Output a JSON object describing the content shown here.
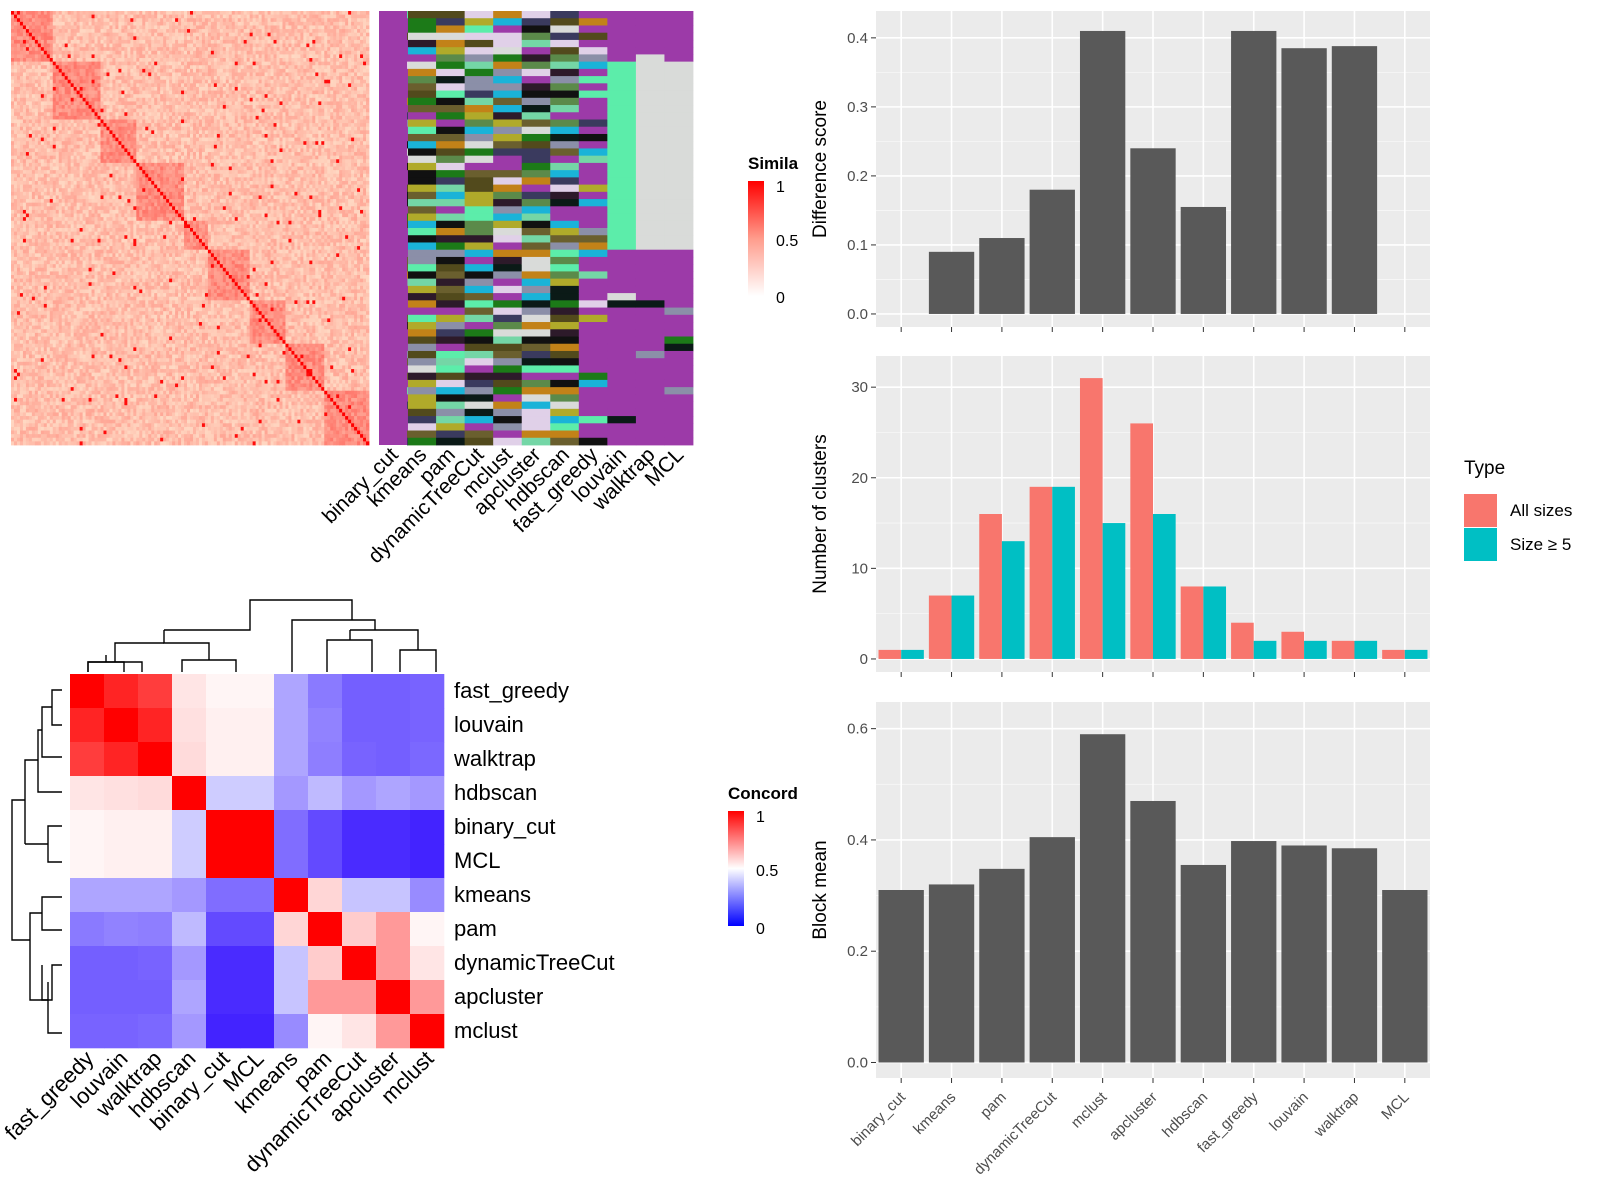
{
  "methods": [
    "binary_cut",
    "kmeans",
    "pam",
    "dynamicTreeCut",
    "mclust",
    "apcluster",
    "hdbscan",
    "fast_greedy",
    "louvain",
    "walktrap",
    "MCL"
  ],
  "similarity_legend": {
    "title": "Simila",
    "ticks": [
      "1",
      "0.5",
      "0"
    ]
  },
  "concordance_legend": {
    "title": "Concord",
    "ticks": [
      "1",
      "0.5",
      "0"
    ]
  },
  "concordance_order": [
    "fast_greedy",
    "louvain",
    "walktrap",
    "hdbscan",
    "binary_cut",
    "MCL",
    "kmeans",
    "pam",
    "dynamicTreeCut",
    "apcluster",
    "mclust"
  ],
  "concordance_matrix": [
    [
      1.0,
      0.93,
      0.88,
      0.55,
      0.52,
      0.52,
      0.38,
      0.28,
      0.22,
      0.22,
      0.23
    ],
    [
      0.93,
      1.0,
      0.93,
      0.56,
      0.53,
      0.53,
      0.38,
      0.3,
      0.22,
      0.22,
      0.23
    ],
    [
      0.88,
      0.93,
      1.0,
      0.57,
      0.53,
      0.53,
      0.38,
      0.29,
      0.23,
      0.22,
      0.24
    ],
    [
      0.55,
      0.56,
      0.57,
      1.0,
      0.47,
      0.47,
      0.35,
      0.43,
      0.35,
      0.38,
      0.35
    ],
    [
      0.52,
      0.53,
      0.53,
      0.47,
      1.0,
      1.0,
      0.25,
      0.17,
      0.1,
      0.1,
      0.08
    ],
    [
      0.52,
      0.53,
      0.53,
      0.47,
      1.0,
      1.0,
      0.25,
      0.17,
      0.1,
      0.1,
      0.08
    ],
    [
      0.38,
      0.38,
      0.38,
      0.35,
      0.25,
      0.25,
      1.0,
      0.58,
      0.45,
      0.45,
      0.32
    ],
    [
      0.28,
      0.3,
      0.29,
      0.43,
      0.17,
      0.17,
      0.58,
      1.0,
      0.6,
      0.7,
      0.52
    ],
    [
      0.22,
      0.22,
      0.23,
      0.35,
      0.1,
      0.1,
      0.45,
      0.6,
      1.0,
      0.7,
      0.55
    ],
    [
      0.22,
      0.22,
      0.22,
      0.38,
      0.1,
      0.1,
      0.45,
      0.7,
      0.7,
      1.0,
      0.7
    ],
    [
      0.23,
      0.23,
      0.24,
      0.35,
      0.08,
      0.08,
      0.32,
      0.52,
      0.55,
      0.7,
      1.0
    ]
  ],
  "membership_colors": [
    "#9c3aa8",
    "#d9dbd9",
    "#0b1a17",
    "#8b8fa8",
    "#1c7a18",
    "#b0aa2a",
    "#2d1a2a",
    "#5b8a4a",
    "#1ab3d8",
    "#3a3a5e",
    "#c28218",
    "#5cedaa",
    "#e0d0e8",
    "#524a1c",
    "#111111",
    "#74d6a6",
    "#6a5f2e"
  ],
  "chart_data": [
    {
      "type": "bar",
      "categories": [
        "binary_cut",
        "kmeans",
        "pam",
        "dynamicTreeCut",
        "mclust",
        "apcluster",
        "hdbscan",
        "fast_greedy",
        "louvain",
        "walktrap",
        "MCL"
      ],
      "values": [
        0.0,
        0.09,
        0.11,
        0.18,
        0.41,
        0.24,
        0.155,
        0.41,
        0.385,
        0.388,
        0.0
      ],
      "ylabel": "Difference score",
      "ylim": [
        0,
        0.42
      ],
      "yticks": [
        "0.0",
        "0.1",
        "0.2",
        "0.3",
        "0.4"
      ],
      "yticks_values": [
        0,
        0.1,
        0.2,
        0.3,
        0.4
      ]
    },
    {
      "type": "bar",
      "categories": [
        "binary_cut",
        "kmeans",
        "pam",
        "dynamicTreeCut",
        "mclust",
        "apcluster",
        "hdbscan",
        "fast_greedy",
        "louvain",
        "walktrap",
        "MCL"
      ],
      "series": [
        {
          "name": "All sizes",
          "color": "#F8766D",
          "values": [
            1,
            7,
            16,
            19,
            31,
            26,
            8,
            4,
            3,
            2,
            1
          ]
        },
        {
          "name": "Size ≥ 5",
          "color": "#00BFC4",
          "values": [
            1,
            7,
            13,
            19,
            15,
            16,
            8,
            2,
            2,
            2,
            1
          ]
        }
      ],
      "ylabel": "Number of clusters",
      "ylim": [
        0,
        32
      ],
      "yticks": [
        "0",
        "10",
        "20",
        "30"
      ],
      "yticks_values": [
        0,
        10,
        20,
        30
      ],
      "legend_title": "Type"
    },
    {
      "type": "bar",
      "categories": [
        "binary_cut",
        "kmeans",
        "pam",
        "dynamicTreeCut",
        "mclust",
        "apcluster",
        "hdbscan",
        "fast_greedy",
        "louvain",
        "walktrap",
        "MCL"
      ],
      "values": [
        0.31,
        0.32,
        0.348,
        0.405,
        0.59,
        0.47,
        0.355,
        0.398,
        0.39,
        0.385,
        0.31
      ],
      "ylabel": "Block mean",
      "ylim": [
        0,
        0.62
      ],
      "yticks": [
        "0.0",
        "0.2",
        "0.4",
        "0.6"
      ],
      "yticks_values": [
        0,
        0.2,
        0.4,
        0.6
      ]
    }
  ]
}
